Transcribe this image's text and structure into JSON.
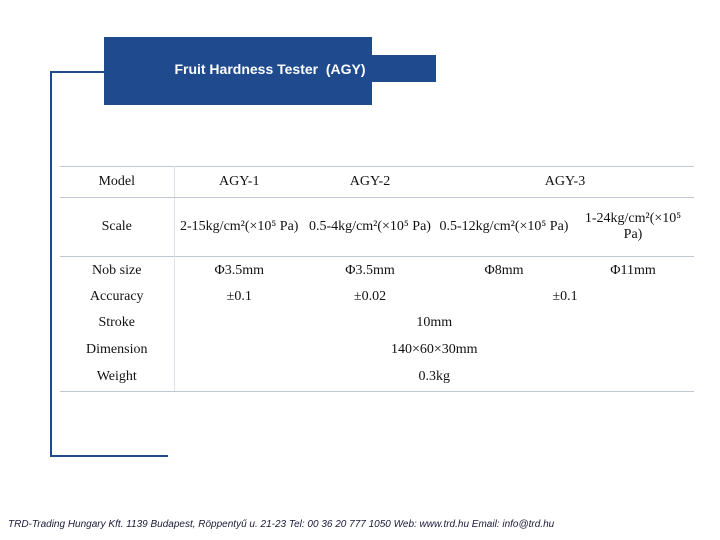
{
  "title": "Fruit Hardness Tester  (AGY)",
  "colors": {
    "accent": "#1f4b8e"
  },
  "table": {
    "headers": [
      "Model",
      "AGY-1",
      "AGY-2",
      "AGY-3"
    ],
    "scale": {
      "label": "Scale",
      "values": [
        "2-15kg/cm²(×10⁵ Pa)",
        "0.5-4kg/cm²(×10⁵ Pa)",
        "0.5-12kg/cm²(×10⁵ Pa)",
        "1-24kg/cm²(×10⁵ Pa)"
      ]
    },
    "nob_size": {
      "label": "Nob size",
      "values": [
        "Φ3.5mm",
        "Φ3.5mm",
        "Φ8mm",
        "Φ11mm"
      ]
    },
    "accuracy": {
      "label": "Accuracy",
      "values": [
        "±0.1",
        "±0.02",
        "±0.1"
      ]
    },
    "stroke": {
      "label": "Stroke",
      "value": "10mm"
    },
    "dimension": {
      "label": "Dimension",
      "value": "140×60×30mm"
    },
    "weight": {
      "label": "Weight",
      "value": "0.3kg"
    }
  },
  "footer": "TRD-Trading Hungary Kft.  1139 Budapest, Röppentyű u. 21-23 Tel: 00 36 20 777 1050  Web: www.trd.hu  Email: info@trd.hu"
}
